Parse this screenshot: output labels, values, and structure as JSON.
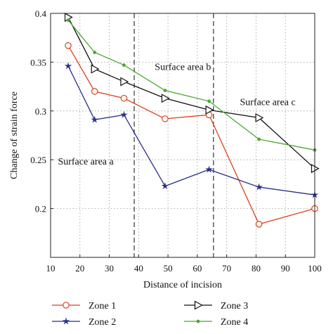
{
  "chart_data": {
    "type": "line",
    "xlabel": "Distance of incision",
    "ylabel": "Change of strain force",
    "xlim": [
      10,
      100
    ],
    "ylim": [
      0.15,
      0.4
    ],
    "xticks": [
      10,
      20,
      30,
      40,
      50,
      60,
      70,
      80,
      90,
      100
    ],
    "yticks": [
      0.2,
      0.25,
      0.3,
      0.35,
      0.4
    ],
    "ytick_labels": [
      "0.2",
      "0.25",
      "0.3",
      "0.35",
      "0.4"
    ],
    "grid": true,
    "legend_placement": "below plot, two columns",
    "vlines": [
      38.5,
      65.5
    ],
    "annotations": [
      {
        "text": "Surface area a",
        "x": 12.5,
        "y": 0.245
      },
      {
        "text": "Surface area b",
        "x": 45.5,
        "y": 0.342
      },
      {
        "text": "Surface area c",
        "x": 74.5,
        "y": 0.306
      }
    ],
    "x": [
      16,
      25,
      35,
      49,
      64,
      81,
      100
    ],
    "series": [
      {
        "name": "Zone 1",
        "color": "#d9441c",
        "marker": "circle",
        "values": [
          0.367,
          0.32,
          0.313,
          0.292,
          0.296,
          0.184,
          0.2
        ]
      },
      {
        "name": "Zone 2",
        "color": "#2a2e8a",
        "marker": "star",
        "values": [
          0.346,
          0.291,
          0.296,
          0.223,
          0.24,
          0.222,
          0.214
        ]
      },
      {
        "name": "Zone 3",
        "color": "#111111",
        "marker": "triangle-right",
        "values": [
          0.396,
          0.343,
          0.33,
          0.313,
          0.301,
          0.293,
          0.241
        ]
      },
      {
        "name": "Zone 4",
        "color": "#4aa832",
        "marker": "dot",
        "values": [
          0.393,
          0.36,
          0.347,
          0.321,
          0.31,
          0.271,
          0.26
        ]
      }
    ]
  }
}
